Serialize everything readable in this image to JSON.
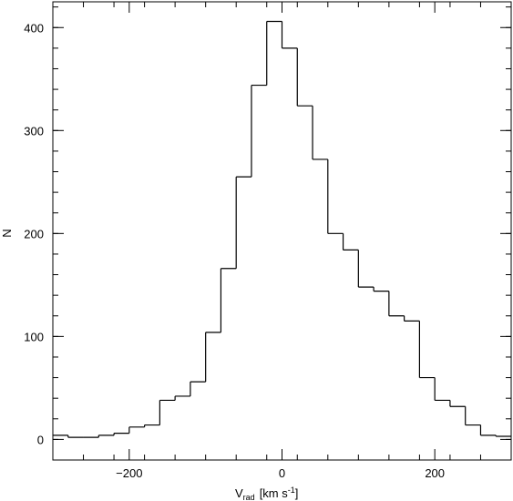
{
  "chart_data": {
    "type": "histogram",
    "xlabel_main": "V",
    "xlabel_sub": "rad",
    "xlabel_unit": "[km s",
    "xlabel_sup": "-1",
    "xlabel_close": "]",
    "ylabel": "N",
    "xlim": [
      -300,
      300
    ],
    "ylim": [
      -20,
      425
    ],
    "x_ticks": [
      -200,
      0,
      200
    ],
    "x_tick_labels": [
      "−200",
      "0",
      "200"
    ],
    "y_ticks": [
      0,
      100,
      200,
      300,
      400
    ],
    "y_tick_labels": [
      "0",
      "100",
      "200",
      "300",
      "400"
    ],
    "bin_width": 20,
    "bin_edges_start": -300,
    "values": [
      4,
      2,
      2,
      4,
      6,
      12,
      14,
      38,
      42,
      56,
      104,
      166,
      255,
      344,
      406,
      380,
      324,
      272,
      200,
      184,
      148,
      144,
      120,
      115,
      60,
      38,
      32,
      14,
      4,
      3
    ],
    "grid": false,
    "legend": "none"
  }
}
